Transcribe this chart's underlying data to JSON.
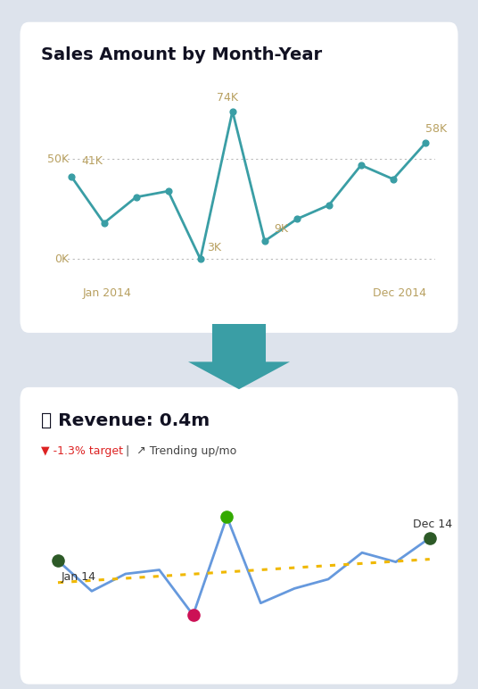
{
  "background_color": "#dde3ec",
  "card_color": "#ffffff",
  "chart1_title": "Sales Amount by Month-Year",
  "chart1_values": [
    41,
    18,
    31,
    34,
    0,
    74,
    9,
    20,
    27,
    47,
    40,
    58
  ],
  "chart1_line_color": "#3a9ea5",
  "chart1_dot_color": "#3a9ea5",
  "chart1_grid_color": "#bbbbbb",
  "chart1_label_color": "#b8a060",
  "chart1_title_color": "#111122",
  "arrow_color": "#3a9ea5",
  "chart2_title": "💰 Revenue: 0.4m",
  "chart2_subtitle_red": "▼ -1.3% target",
  "chart2_subtitle_rest": " |  ↗ Trending up/mo",
  "chart2_values": [
    41,
    18,
    31,
    34,
    0,
    74,
    9,
    20,
    27,
    47,
    40,
    58
  ],
  "chart2_line_color": "#6699dd",
  "chart2_trend_color": "#f0b800",
  "chart2_dot_first_color": "#2d5a27",
  "chart2_dot_max_color": "#33aa00",
  "chart2_dot_min_color": "#cc1155",
  "chart2_dot_last_color": "#2d5a27",
  "chart2_title_color": "#111122"
}
